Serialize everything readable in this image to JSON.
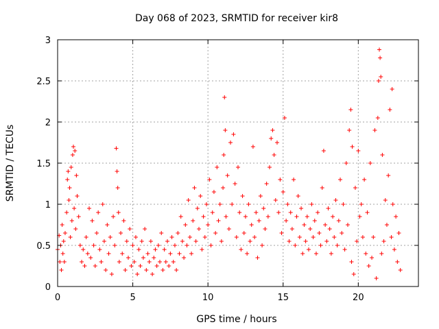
{
  "chart_data": {
    "type": "scatter",
    "title": "Day 068 of 2023, SRMTID for receiver kir8",
    "xlabel": "GPS time / hours",
    "ylabel": "SRMTID / TECUs",
    "xlim": [
      0,
      24
    ],
    "ylim": [
      0,
      3
    ],
    "xticks": [
      0,
      5,
      10,
      15,
      20
    ],
    "yticks": [
      0,
      0.5,
      1,
      1.5,
      2,
      2.5,
      3
    ],
    "xtick_labels": [
      "0",
      "5",
      "10",
      "15",
      "20"
    ],
    "ytick_labels": [
      "0",
      "0.5",
      "1",
      "1.5",
      "2",
      "2.5",
      "3"
    ],
    "grid": true,
    "marker": "+",
    "series": [
      {
        "name": "SRMTID",
        "color": "#ff0000",
        "points": [
          [
            0.0,
            0.45
          ],
          [
            0.1,
            0.62
          ],
          [
            0.15,
            0.3
          ],
          [
            0.2,
            0.5
          ],
          [
            0.25,
            0.2
          ],
          [
            0.3,
            0.75
          ],
          [
            0.35,
            0.4
          ],
          [
            0.4,
            0.55
          ],
          [
            0.45,
            0.3
          ],
          [
            0.5,
            0.65
          ],
          [
            0.6,
            0.9
          ],
          [
            0.65,
            1.3
          ],
          [
            0.7,
            1.4
          ],
          [
            0.75,
            1.05
          ],
          [
            0.8,
            1.2
          ],
          [
            0.85,
            0.6
          ],
          [
            0.9,
            1.45
          ],
          [
            0.95,
            0.8
          ],
          [
            1.0,
            1.6
          ],
          [
            1.05,
            1.7
          ],
          [
            1.1,
            0.95
          ],
          [
            1.15,
            1.65
          ],
          [
            1.2,
            0.7
          ],
          [
            1.25,
            1.35
          ],
          [
            1.3,
            1.1
          ],
          [
            1.4,
            0.85
          ],
          [
            1.5,
            0.5
          ],
          [
            1.6,
            0.3
          ],
          [
            1.7,
            0.45
          ],
          [
            1.8,
            0.25
          ],
          [
            1.9,
            0.6
          ],
          [
            2.0,
            0.4
          ],
          [
            2.1,
            0.95
          ],
          [
            2.2,
            0.35
          ],
          [
            2.3,
            0.8
          ],
          [
            2.4,
            0.5
          ],
          [
            2.5,
            0.25
          ],
          [
            2.6,
            0.65
          ],
          [
            2.7,
            0.9
          ],
          [
            2.8,
            0.45
          ],
          [
            2.9,
            0.3
          ],
          [
            3.0,
            1.0
          ],
          [
            3.1,
            0.55
          ],
          [
            3.2,
            0.2
          ],
          [
            3.3,
            0.75
          ],
          [
            3.4,
            0.4
          ],
          [
            3.5,
            0.6
          ],
          [
            3.6,
            0.15
          ],
          [
            3.7,
            0.85
          ],
          [
            3.8,
            0.5
          ],
          [
            3.9,
            1.68
          ],
          [
            3.95,
            1.4
          ],
          [
            4.0,
            1.2
          ],
          [
            4.05,
            0.9
          ],
          [
            4.1,
            0.3
          ],
          [
            4.2,
            0.65
          ],
          [
            4.3,
            0.4
          ],
          [
            4.4,
            0.8
          ],
          [
            4.5,
            0.2
          ],
          [
            4.6,
            0.55
          ],
          [
            4.7,
            0.35
          ],
          [
            4.8,
            0.7
          ],
          [
            4.9,
            0.25
          ],
          [
            5.0,
            0.5
          ],
          [
            5.1,
            0.3
          ],
          [
            5.2,
            0.6
          ],
          [
            5.3,
            0.15
          ],
          [
            5.4,
            0.45
          ],
          [
            5.5,
            0.25
          ],
          [
            5.6,
            0.55
          ],
          [
            5.7,
            0.35
          ],
          [
            5.8,
            0.7
          ],
          [
            5.9,
            0.2
          ],
          [
            6.0,
            0.4
          ],
          [
            6.1,
            0.3
          ],
          [
            6.2,
            0.55
          ],
          [
            6.3,
            0.15
          ],
          [
            6.4,
            0.35
          ],
          [
            6.5,
            0.45
          ],
          [
            6.6,
            0.25
          ],
          [
            6.7,
            0.5
          ],
          [
            6.8,
            0.3
          ],
          [
            6.9,
            0.65
          ],
          [
            7.0,
            0.2
          ],
          [
            7.1,
            0.45
          ],
          [
            7.2,
            0.3
          ],
          [
            7.3,
            0.55
          ],
          [
            7.4,
            0.25
          ],
          [
            7.5,
            0.4
          ],
          [
            7.6,
            0.6
          ],
          [
            7.7,
            0.3
          ],
          [
            7.8,
            0.5
          ],
          [
            7.9,
            0.2
          ],
          [
            8.0,
            0.65
          ],
          [
            8.1,
            0.4
          ],
          [
            8.2,
            0.85
          ],
          [
            8.3,
            0.55
          ],
          [
            8.4,
            0.35
          ],
          [
            8.5,
            0.75
          ],
          [
            8.6,
            0.5
          ],
          [
            8.7,
            1.05
          ],
          [
            8.8,
            0.6
          ],
          [
            8.9,
            0.4
          ],
          [
            9.0,
            0.8
          ],
          [
            9.1,
            1.2
          ],
          [
            9.2,
            0.55
          ],
          [
            9.3,
            0.95
          ],
          [
            9.4,
            0.7
          ],
          [
            9.5,
            1.1
          ],
          [
            9.6,
            0.45
          ],
          [
            9.7,
            0.85
          ],
          [
            9.8,
            0.6
          ],
          [
            9.9,
            1.0
          ],
          [
            10.0,
            0.75
          ],
          [
            10.1,
            1.3
          ],
          [
            10.2,
            0.5
          ],
          [
            10.3,
            0.9
          ],
          [
            10.4,
            1.15
          ],
          [
            10.5,
            0.65
          ],
          [
            10.6,
            1.45
          ],
          [
            10.7,
            0.8
          ],
          [
            10.8,
            1.0
          ],
          [
            10.9,
            0.55
          ],
          [
            11.0,
            1.2
          ],
          [
            11.05,
            1.6
          ],
          [
            11.1,
            2.3
          ],
          [
            11.15,
            1.9
          ],
          [
            11.2,
            0.85
          ],
          [
            11.3,
            1.35
          ],
          [
            11.4,
            0.7
          ],
          [
            11.5,
            1.75
          ],
          [
            11.6,
            1.0
          ],
          [
            11.7,
            1.85
          ],
          [
            11.8,
            1.25
          ],
          [
            11.9,
            0.6
          ],
          [
            12.0,
            1.45
          ],
          [
            12.1,
            0.9
          ],
          [
            12.2,
            0.45
          ],
          [
            12.3,
            1.1
          ],
          [
            12.4,
            0.65
          ],
          [
            12.5,
            0.85
          ],
          [
            12.6,
            0.4
          ],
          [
            12.7,
            1.0
          ],
          [
            12.8,
            0.55
          ],
          [
            12.9,
            0.75
          ],
          [
            13.0,
            1.7
          ],
          [
            13.1,
            0.6
          ],
          [
            13.2,
            0.9
          ],
          [
            13.3,
            0.35
          ],
          [
            13.4,
            0.8
          ],
          [
            13.5,
            1.1
          ],
          [
            13.6,
            0.5
          ],
          [
            13.7,
            0.95
          ],
          [
            13.8,
            0.7
          ],
          [
            13.9,
            1.25
          ],
          [
            14.0,
            0.85
          ],
          [
            14.1,
            1.45
          ],
          [
            14.2,
            1.8
          ],
          [
            14.3,
            1.9
          ],
          [
            14.4,
            1.6
          ],
          [
            14.5,
            1.05
          ],
          [
            14.6,
            1.75
          ],
          [
            14.7,
            0.9
          ],
          [
            14.8,
            1.3
          ],
          [
            14.9,
            0.65
          ],
          [
            15.0,
            1.15
          ],
          [
            15.1,
            2.05
          ],
          [
            15.2,
            0.8
          ],
          [
            15.3,
            1.0
          ],
          [
            15.4,
            0.55
          ],
          [
            15.5,
            0.9
          ],
          [
            15.6,
            0.7
          ],
          [
            15.7,
            1.3
          ],
          [
            15.8,
            0.5
          ],
          [
            15.9,
            0.85
          ],
          [
            16.0,
            1.1
          ],
          [
            16.1,
            0.6
          ],
          [
            16.2,
            0.95
          ],
          [
            16.3,
            0.4
          ],
          [
            16.4,
            0.75
          ],
          [
            16.5,
            0.55
          ],
          [
            16.6,
            0.85
          ],
          [
            16.7,
            0.45
          ],
          [
            16.8,
            0.7
          ],
          [
            16.9,
            1.0
          ],
          [
            17.0,
            0.6
          ],
          [
            17.1,
            0.8
          ],
          [
            17.2,
            0.4
          ],
          [
            17.3,
            0.9
          ],
          [
            17.4,
            0.65
          ],
          [
            17.5,
            0.5
          ],
          [
            17.6,
            1.2
          ],
          [
            17.7,
            1.65
          ],
          [
            17.8,
            0.75
          ],
          [
            17.9,
            0.55
          ],
          [
            18.0,
            0.95
          ],
          [
            18.1,
            0.7
          ],
          [
            18.2,
            0.4
          ],
          [
            18.3,
            0.85
          ],
          [
            18.4,
            0.6
          ],
          [
            18.5,
            1.05
          ],
          [
            18.6,
            0.5
          ],
          [
            18.7,
            0.8
          ],
          [
            18.8,
            1.3
          ],
          [
            18.9,
            0.65
          ],
          [
            19.0,
            1.0
          ],
          [
            19.1,
            0.45
          ],
          [
            19.2,
            1.5
          ],
          [
            19.3,
            0.75
          ],
          [
            19.4,
            1.9
          ],
          [
            19.5,
            2.15
          ],
          [
            19.55,
            0.3
          ],
          [
            19.6,
            1.7
          ],
          [
            19.7,
            0.15
          ],
          [
            19.8,
            1.2
          ],
          [
            19.9,
            0.55
          ],
          [
            20.0,
            1.65
          ],
          [
            20.1,
            0.85
          ],
          [
            20.2,
            1.0
          ],
          [
            20.3,
            0.6
          ],
          [
            20.4,
            1.3
          ],
          [
            20.5,
            0.4
          ],
          [
            20.6,
            0.9
          ],
          [
            20.7,
            0.25
          ],
          [
            20.8,
            1.5
          ],
          [
            20.9,
            0.35
          ],
          [
            21.0,
            0.6
          ],
          [
            21.1,
            1.9
          ],
          [
            21.2,
            0.1
          ],
          [
            21.3,
            2.05
          ],
          [
            21.35,
            2.5
          ],
          [
            21.4,
            2.88
          ],
          [
            21.45,
            2.78
          ],
          [
            21.5,
            2.55
          ],
          [
            21.55,
            0.4
          ],
          [
            21.6,
            1.6
          ],
          [
            21.7,
            0.55
          ],
          [
            21.8,
            1.05
          ],
          [
            21.9,
            0.75
          ],
          [
            22.0,
            1.35
          ],
          [
            22.1,
            2.15
          ],
          [
            22.2,
            0.6
          ],
          [
            22.25,
            2.4
          ],
          [
            22.3,
            1.0
          ],
          [
            22.4,
            0.45
          ],
          [
            22.5,
            0.85
          ],
          [
            22.6,
            0.3
          ],
          [
            22.7,
            0.65
          ],
          [
            22.8,
            0.2
          ]
        ]
      }
    ]
  }
}
